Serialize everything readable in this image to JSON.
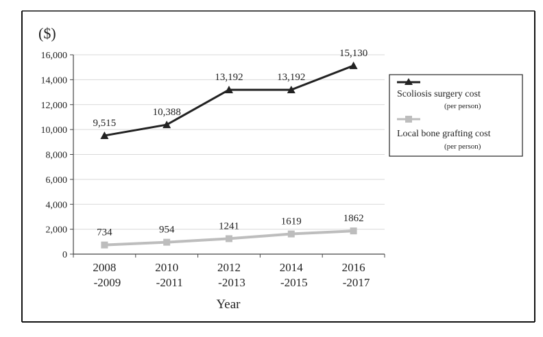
{
  "chart_data": {
    "type": "line",
    "unit_label": "($)",
    "xlabel": "Year",
    "categories": [
      {
        "line1": "2008",
        "line2": "-2009"
      },
      {
        "line1": "2010",
        "line2": "-2011"
      },
      {
        "line1": "2012",
        "line2": "-2013"
      },
      {
        "line1": "2014",
        "line2": "-2015"
      },
      {
        "line1": "2016",
        "line2": "-2017"
      }
    ],
    "y_ticks": [
      "0",
      "2,000",
      "4,000",
      "6,000",
      "8,000",
      "10,000",
      "12,000",
      "14,000",
      "16,000"
    ],
    "ylim": [
      0,
      16000
    ],
    "grid": true,
    "legend_position": "right",
    "series": [
      {
        "name": "Scoliosis surgery cost",
        "name_sub": "(per person)",
        "values": [
          9515,
          10388,
          13192,
          13192,
          15130
        ],
        "labels": [
          "9,515",
          "10,388",
          "13,192",
          "13,192",
          "15,130"
        ],
        "color": "#222222",
        "marker": "triangle"
      },
      {
        "name": "Local bone grafting cost",
        "name_sub": "(per person)",
        "values": [
          734,
          954,
          1241,
          1619,
          1862
        ],
        "labels": [
          "734",
          "954",
          "1241",
          "1619",
          "1862"
        ],
        "color": "#bdbdbd",
        "marker": "square"
      }
    ]
  }
}
